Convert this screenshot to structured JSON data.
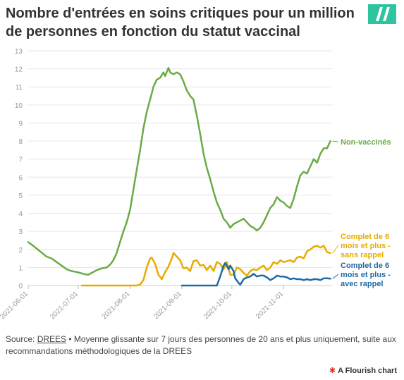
{
  "header": {
    "title": "Nombre d'entrées en soins critiques pour un million de personnes en fonction du statut vaccinal"
  },
  "footer": {
    "source_label": "Source:",
    "source_link": "DREES",
    "note": "• Moyenne glissante sur 7 jours des personnes de 20 ans et plus uniquement, suite aux recommandations méthodologiques de la DREES"
  },
  "credit": {
    "label": "A Flourish chart"
  },
  "colors": {
    "brand_logo": "#2ec4a0",
    "non_vaccines": "#6aab44",
    "sans_rappel": "#e6ac00",
    "avec_rappel": "#1f6aa5",
    "grid": "#e6e6e6",
    "axis_text": "#999999"
  },
  "chart_data": {
    "type": "line",
    "title": "Nombre d'entrées en soins critiques pour un million de personnes en fonction du statut vaccinal",
    "xlabel": "",
    "ylabel": "",
    "ylim": [
      0,
      13
    ],
    "yticks": [
      0,
      1,
      2,
      3,
      4,
      5,
      6,
      7,
      8,
      9,
      10,
      11,
      12,
      13
    ],
    "xlim": [
      "2021-06-01",
      "2021-11-30"
    ],
    "xticks": [
      "2021-06-01",
      "2021-07-01",
      "2021-08-01",
      "2021-09-01",
      "2021-10-01",
      "2021-11-01"
    ],
    "grid": true,
    "series": [
      {
        "key": "non_vaccines",
        "name": "Non-vaccinés",
        "label_lines": [
          "Non-vaccinés"
        ],
        "color": "#6aab44",
        "points": [
          [
            "2021-06-01",
            2.4
          ],
          [
            "2021-06-04",
            2.2
          ],
          [
            "2021-06-08",
            1.9
          ],
          [
            "2021-06-12",
            1.6
          ],
          [
            "2021-06-15",
            1.5
          ],
          [
            "2021-06-18",
            1.3
          ],
          [
            "2021-06-21",
            1.1
          ],
          [
            "2021-06-24",
            0.9
          ],
          [
            "2021-06-27",
            0.8
          ],
          [
            "2021-06-30",
            0.75
          ],
          [
            "2021-07-02",
            0.7
          ],
          [
            "2021-07-05",
            0.62
          ],
          [
            "2021-07-07",
            0.6
          ],
          [
            "2021-07-09",
            0.7
          ],
          [
            "2021-07-12",
            0.85
          ],
          [
            "2021-07-15",
            0.95
          ],
          [
            "2021-07-18",
            1.0
          ],
          [
            "2021-07-20",
            1.15
          ],
          [
            "2021-07-22",
            1.4
          ],
          [
            "2021-07-24",
            1.8
          ],
          [
            "2021-07-26",
            2.4
          ],
          [
            "2021-07-28",
            3.0
          ],
          [
            "2021-07-30",
            3.5
          ],
          [
            "2021-08-01",
            4.2
          ],
          [
            "2021-08-03",
            5.3
          ],
          [
            "2021-08-05",
            6.4
          ],
          [
            "2021-08-07",
            7.5
          ],
          [
            "2021-08-09",
            8.7
          ],
          [
            "2021-08-11",
            9.6
          ],
          [
            "2021-08-13",
            10.3
          ],
          [
            "2021-08-15",
            11.0
          ],
          [
            "2021-08-17",
            11.4
          ],
          [
            "2021-08-19",
            11.5
          ],
          [
            "2021-08-21",
            11.8
          ],
          [
            "2021-08-22",
            11.6
          ],
          [
            "2021-08-24",
            12.05
          ],
          [
            "2021-08-25",
            11.8
          ],
          [
            "2021-08-27",
            11.7
          ],
          [
            "2021-08-29",
            11.8
          ],
          [
            "2021-08-31",
            11.7
          ],
          [
            "2021-09-02",
            11.3
          ],
          [
            "2021-09-04",
            10.8
          ],
          [
            "2021-09-06",
            10.5
          ],
          [
            "2021-09-08",
            10.3
          ],
          [
            "2021-09-10",
            9.4
          ],
          [
            "2021-09-12",
            8.4
          ],
          [
            "2021-09-14",
            7.3
          ],
          [
            "2021-09-16",
            6.5
          ],
          [
            "2021-09-18",
            5.9
          ],
          [
            "2021-09-20",
            5.2
          ],
          [
            "2021-09-22",
            4.6
          ],
          [
            "2021-09-24",
            4.2
          ],
          [
            "2021-09-26",
            3.7
          ],
          [
            "2021-09-28",
            3.5
          ],
          [
            "2021-09-30",
            3.2
          ],
          [
            "2021-10-02",
            3.4
          ],
          [
            "2021-10-04",
            3.5
          ],
          [
            "2021-10-06",
            3.6
          ],
          [
            "2021-10-08",
            3.7
          ],
          [
            "2021-10-10",
            3.5
          ],
          [
            "2021-10-12",
            3.3
          ],
          [
            "2021-10-14",
            3.2
          ],
          [
            "2021-10-16",
            3.05
          ],
          [
            "2021-10-18",
            3.2
          ],
          [
            "2021-10-20",
            3.5
          ],
          [
            "2021-10-22",
            3.9
          ],
          [
            "2021-10-24",
            4.3
          ],
          [
            "2021-10-26",
            4.5
          ],
          [
            "2021-10-28",
            4.9
          ],
          [
            "2021-10-30",
            4.7
          ],
          [
            "2021-11-01",
            4.6
          ],
          [
            "2021-11-03",
            4.4
          ],
          [
            "2021-11-05",
            4.3
          ],
          [
            "2021-11-07",
            4.8
          ],
          [
            "2021-11-09",
            5.5
          ],
          [
            "2021-11-11",
            6.1
          ],
          [
            "2021-11-13",
            6.3
          ],
          [
            "2021-11-15",
            6.2
          ],
          [
            "2021-11-17",
            6.6
          ],
          [
            "2021-11-19",
            7.0
          ],
          [
            "2021-11-21",
            6.8
          ],
          [
            "2021-11-23",
            7.3
          ],
          [
            "2021-11-25",
            7.6
          ],
          [
            "2021-11-27",
            7.6
          ],
          [
            "2021-11-29",
            8.0
          ]
        ]
      },
      {
        "key": "sans_rappel",
        "name": "Complet de 6 mois et plus - sans rappel",
        "label_lines": [
          "Complet de 6",
          "mois et plus -",
          "sans rappel"
        ],
        "color": "#e6ac00",
        "points": [
          [
            "2021-07-03",
            0.0
          ],
          [
            "2021-08-05",
            0.0
          ],
          [
            "2021-08-07",
            0.05
          ],
          [
            "2021-08-09",
            0.3
          ],
          [
            "2021-08-11",
            1.0
          ],
          [
            "2021-08-13",
            1.5
          ],
          [
            "2021-08-14",
            1.55
          ],
          [
            "2021-08-16",
            1.2
          ],
          [
            "2021-08-18",
            0.6
          ],
          [
            "2021-08-20",
            0.35
          ],
          [
            "2021-08-22",
            0.75
          ],
          [
            "2021-08-24",
            1.05
          ],
          [
            "2021-08-26",
            1.5
          ],
          [
            "2021-08-27",
            1.8
          ],
          [
            "2021-08-29",
            1.6
          ],
          [
            "2021-08-31",
            1.4
          ],
          [
            "2021-09-02",
            0.95
          ],
          [
            "2021-09-04",
            1.0
          ],
          [
            "2021-09-06",
            0.8
          ],
          [
            "2021-09-08",
            1.35
          ],
          [
            "2021-09-10",
            1.4
          ],
          [
            "2021-09-12",
            1.1
          ],
          [
            "2021-09-14",
            1.15
          ],
          [
            "2021-09-16",
            0.85
          ],
          [
            "2021-09-18",
            1.1
          ],
          [
            "2021-09-20",
            0.8
          ],
          [
            "2021-09-22",
            1.3
          ],
          [
            "2021-09-24",
            1.2
          ],
          [
            "2021-09-26",
            0.9
          ],
          [
            "2021-09-28",
            1.3
          ],
          [
            "2021-09-30",
            0.6
          ],
          [
            "2021-10-02",
            0.6
          ],
          [
            "2021-10-04",
            1.0
          ],
          [
            "2021-10-06",
            0.9
          ],
          [
            "2021-10-08",
            0.7
          ],
          [
            "2021-10-10",
            0.55
          ],
          [
            "2021-10-12",
            0.8
          ],
          [
            "2021-10-14",
            0.9
          ],
          [
            "2021-10-16",
            0.85
          ],
          [
            "2021-10-18",
            1.0
          ],
          [
            "2021-10-20",
            1.1
          ],
          [
            "2021-10-22",
            0.85
          ],
          [
            "2021-10-24",
            1.0
          ],
          [
            "2021-10-26",
            1.3
          ],
          [
            "2021-10-28",
            1.2
          ],
          [
            "2021-10-30",
            1.4
          ],
          [
            "2021-11-01",
            1.3
          ],
          [
            "2021-11-03",
            1.35
          ],
          [
            "2021-11-05",
            1.4
          ],
          [
            "2021-11-07",
            1.3
          ],
          [
            "2021-11-09",
            1.55
          ],
          [
            "2021-11-11",
            1.6
          ],
          [
            "2021-11-13",
            1.5
          ],
          [
            "2021-11-15",
            1.9
          ],
          [
            "2021-11-17",
            2.0
          ],
          [
            "2021-11-19",
            2.15
          ],
          [
            "2021-11-21",
            2.2
          ],
          [
            "2021-11-23",
            2.1
          ],
          [
            "2021-11-25",
            2.2
          ],
          [
            "2021-11-27",
            1.85
          ],
          [
            "2021-11-29",
            1.8
          ]
        ]
      },
      {
        "key": "avec_rappel",
        "name": "Complet de 6 mois et plus - avec rappel",
        "label_lines": [
          "Complet de 6",
          "mois et plus -",
          "avec rappel"
        ],
        "color": "#1f6aa5",
        "points": [
          [
            "2021-09-01",
            0.0
          ],
          [
            "2021-09-22",
            0.0
          ],
          [
            "2021-09-24",
            0.5
          ],
          [
            "2021-09-26",
            1.1
          ],
          [
            "2021-09-27",
            1.25
          ],
          [
            "2021-09-29",
            0.9
          ],
          [
            "2021-09-30",
            1.1
          ],
          [
            "2021-10-02",
            0.8
          ],
          [
            "2021-10-03",
            0.4
          ],
          [
            "2021-10-05",
            0.15
          ],
          [
            "2021-10-06",
            0.05
          ],
          [
            "2021-10-08",
            0.35
          ],
          [
            "2021-10-10",
            0.45
          ],
          [
            "2021-10-12",
            0.5
          ],
          [
            "2021-10-14",
            0.65
          ],
          [
            "2021-10-16",
            0.5
          ],
          [
            "2021-10-18",
            0.55
          ],
          [
            "2021-10-20",
            0.55
          ],
          [
            "2021-10-22",
            0.45
          ],
          [
            "2021-10-24",
            0.3
          ],
          [
            "2021-10-26",
            0.4
          ],
          [
            "2021-10-28",
            0.55
          ],
          [
            "2021-10-30",
            0.5
          ],
          [
            "2021-11-01",
            0.5
          ],
          [
            "2021-11-03",
            0.45
          ],
          [
            "2021-11-05",
            0.35
          ],
          [
            "2021-11-07",
            0.4
          ],
          [
            "2021-11-09",
            0.35
          ],
          [
            "2021-11-11",
            0.35
          ],
          [
            "2021-11-13",
            0.3
          ],
          [
            "2021-11-15",
            0.35
          ],
          [
            "2021-11-17",
            0.3
          ],
          [
            "2021-11-19",
            0.35
          ],
          [
            "2021-11-21",
            0.35
          ],
          [
            "2021-11-23",
            0.3
          ],
          [
            "2021-11-25",
            0.4
          ],
          [
            "2021-11-27",
            0.4
          ],
          [
            "2021-11-29",
            0.38
          ]
        ]
      }
    ]
  }
}
